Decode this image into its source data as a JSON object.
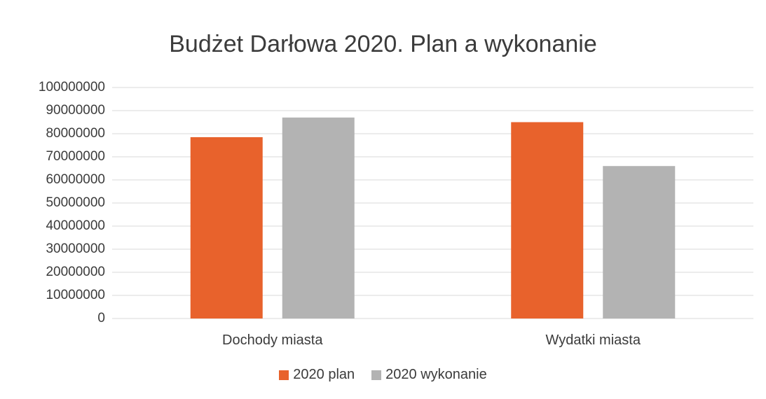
{
  "chart_data": {
    "type": "bar",
    "title": "Budżet Darłowa 2020. Plan a wykonanie",
    "xlabel": "",
    "ylabel": "",
    "ylim": [
      0,
      100000000
    ],
    "yticks": [
      "0",
      "10000000",
      "20000000",
      "30000000",
      "40000000",
      "50000000",
      "60000000",
      "70000000",
      "80000000",
      "90000000",
      "100000000"
    ],
    "categories": [
      "Dochody miasta",
      "Wydatki miasta"
    ],
    "series": [
      {
        "name": "2020 plan",
        "values": [
          78500000,
          85000000
        ],
        "color": "#e8622c"
      },
      {
        "name": "2020 wykonanie",
        "values": [
          87000000,
          66000000
        ],
        "color": "#b3b3b3"
      }
    ],
    "grid": true,
    "legend_position": "bottom"
  }
}
